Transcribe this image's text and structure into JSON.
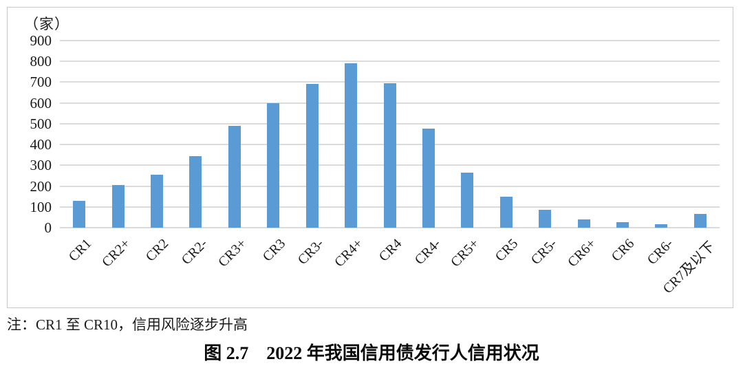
{
  "chart_data": {
    "type": "bar",
    "title": "图 2.7　2022 年我国信用债发行人信用状况",
    "unit_label": "（家）",
    "categories": [
      "CR1",
      "CR2+",
      "CR2",
      "CR2-",
      "CR3+",
      "CR3",
      "CR3-",
      "CR4+",
      "CR4",
      "CR4-",
      "CR5+",
      "CR5",
      "CR5-",
      "CR6+",
      "CR6",
      "CR6-",
      "CR7及以下"
    ],
    "values": [
      130,
      205,
      255,
      345,
      490,
      600,
      690,
      790,
      695,
      475,
      265,
      150,
      85,
      40,
      25,
      15,
      65
    ],
    "xlabel": "",
    "ylabel": "",
    "ylim": [
      0,
      900
    ],
    "yticks": [
      0,
      100,
      200,
      300,
      400,
      500,
      600,
      700,
      800,
      900
    ],
    "grid": true,
    "legend": false,
    "bar_color": "#5B9BD5",
    "gridline_color": "#DBDBDB",
    "note": "注：CR1 至 CR10，信用风险逐步升高"
  },
  "figure": {
    "note": "注：CR1 至 CR10，信用风险逐步升高",
    "caption": "图 2.7　2022 年我国信用债发行人信用状况"
  }
}
